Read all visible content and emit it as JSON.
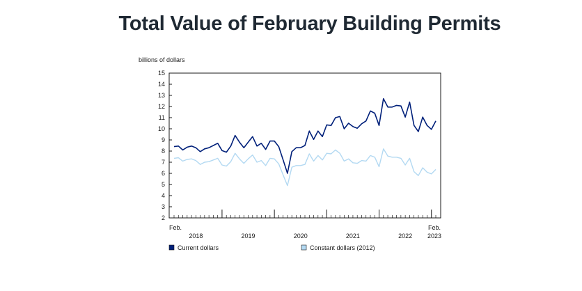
{
  "page": {
    "title": "Total Value of February Building Permits"
  },
  "chart_data": {
    "type": "line",
    "title": "Total Value of February Building Permits",
    "ylabel": "billions of dollars",
    "ylim": [
      2,
      15
    ],
    "y_ticks": [
      2,
      3,
      4,
      5,
      6,
      7,
      8,
      9,
      10,
      11,
      12,
      13,
      14,
      15
    ],
    "x_start_label": [
      "Feb.",
      ""
    ],
    "x_end_label": [
      "Feb.",
      "2023"
    ],
    "year_labels": [
      "2018",
      "2019",
      "2020",
      "2021",
      "2022"
    ],
    "x_range": [
      "2018-02",
      "2023-02"
    ],
    "grid": false,
    "legend_position": "bottom",
    "colors": {
      "current": "#00207a",
      "constant": "#b3d9f2",
      "frame": "#1a1a1a"
    },
    "series": [
      {
        "name": "Current dollars",
        "values": [
          8.4,
          8.45,
          8.1,
          8.35,
          8.45,
          8.3,
          7.95,
          8.2,
          8.3,
          8.5,
          8.7,
          8.05,
          7.9,
          8.45,
          9.4,
          8.8,
          8.3,
          8.8,
          9.3,
          8.45,
          8.7,
          8.15,
          8.9,
          8.9,
          8.4,
          7.2,
          6.0,
          7.95,
          8.3,
          8.3,
          8.5,
          9.8,
          9.05,
          9.8,
          9.3,
          10.35,
          10.3,
          11.0,
          11.1,
          10.0,
          10.5,
          10.2,
          10.05,
          10.45,
          10.7,
          11.6,
          11.4,
          10.3,
          12.7,
          11.95,
          11.95,
          12.1,
          12.05,
          11.05,
          12.4,
          10.3,
          9.75,
          11.05,
          10.3,
          9.95,
          10.7
        ]
      },
      {
        "name": "Constant dollars (2012)",
        "values": [
          7.35,
          7.4,
          7.1,
          7.25,
          7.3,
          7.15,
          6.8,
          7.0,
          7.05,
          7.2,
          7.35,
          6.75,
          6.65,
          7.05,
          7.8,
          7.3,
          6.9,
          7.3,
          7.65,
          7.0,
          7.15,
          6.7,
          7.35,
          7.3,
          6.85,
          5.85,
          4.9,
          6.55,
          6.7,
          6.7,
          6.8,
          7.75,
          7.1,
          7.6,
          7.2,
          7.8,
          7.75,
          8.1,
          7.8,
          7.1,
          7.3,
          6.95,
          6.9,
          7.15,
          7.1,
          7.6,
          7.45,
          6.6,
          8.2,
          7.55,
          7.45,
          7.45,
          7.35,
          6.75,
          7.35,
          6.15,
          5.8,
          6.5,
          6.1,
          5.95,
          6.35
        ]
      }
    ]
  }
}
